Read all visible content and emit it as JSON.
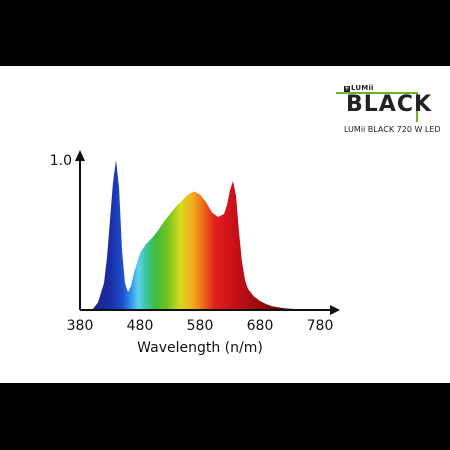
{
  "brand": {
    "maker": "LUMii",
    "product": "BLACK",
    "model": "LUMii BLACK 720 W LED",
    "accent_color": "#6bb42c"
  },
  "chart_data": {
    "type": "area",
    "title": "",
    "xlabel": "Wavelength (n/m)",
    "ylabel": "",
    "x_ticks": [
      "380",
      "480",
      "580",
      "680",
      "780"
    ],
    "y_ticks": [
      "1.0"
    ],
    "xlim": [
      380,
      780
    ],
    "ylim": [
      0,
      1.0
    ],
    "series": [
      {
        "color_mode": "visible-spectrum",
        "x": [
          400,
          410,
          420,
          425,
          430,
          435,
          440,
          445,
          450,
          455,
          460,
          465,
          470,
          480,
          490,
          500,
          510,
          520,
          530,
          540,
          550,
          560,
          570,
          580,
          590,
          600,
          610,
          620,
          625,
          630,
          635,
          640,
          645,
          650,
          655,
          660,
          670,
          680,
          690,
          700,
          720,
          740,
          760,
          780
        ],
        "y": [
          0.0,
          0.05,
          0.18,
          0.35,
          0.6,
          0.85,
          1.0,
          0.82,
          0.4,
          0.18,
          0.12,
          0.16,
          0.25,
          0.38,
          0.44,
          0.48,
          0.53,
          0.59,
          0.64,
          0.69,
          0.73,
          0.77,
          0.79,
          0.77,
          0.72,
          0.65,
          0.62,
          0.64,
          0.7,
          0.8,
          0.86,
          0.76,
          0.52,
          0.32,
          0.2,
          0.14,
          0.09,
          0.06,
          0.04,
          0.025,
          0.012,
          0.006,
          0.002,
          0.0
        ]
      }
    ]
  }
}
